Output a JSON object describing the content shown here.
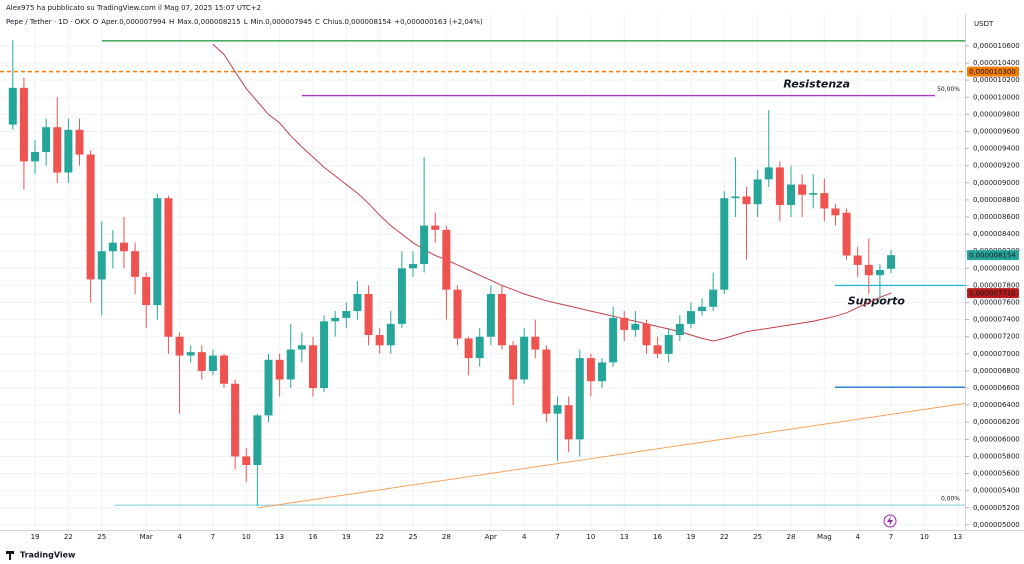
{
  "header": {
    "author": "Alex975 ha pubblicato su TradingView.com il Mag 07, 2025 15:07 UTC+2",
    "symbol": "Pepe / Tether · 1D · OKX",
    "o": "O",
    "open_label": "Aper.",
    "open": "0,000007994",
    "h": "H",
    "high_label": "Max.",
    "high": "0,000008215",
    "l": "L",
    "low_label": "Min.",
    "low": "0,000007945",
    "c": "C",
    "close_label": "Chius.",
    "close": "0,000008154",
    "change": "+0,000000163 (+2,04%)"
  },
  "footer": {
    "brand": "TradingView"
  },
  "chart_data": {
    "type": "candlestick",
    "currency": "USDT",
    "up_color": "#26a69a",
    "down_color": "#ef5350",
    "grid": true,
    "categories": [
      null,
      null,
      "19",
      null,
      null,
      "22",
      null,
      null,
      "25",
      null,
      null,
      null,
      "Mar",
      null,
      null,
      "4",
      null,
      null,
      "7",
      null,
      null,
      "10",
      null,
      null,
      "13",
      null,
      null,
      "16",
      null,
      null,
      "19",
      null,
      null,
      "22",
      null,
      null,
      "25",
      null,
      null,
      "28",
      null,
      null,
      null,
      "Apr",
      null,
      null,
      "4",
      null,
      null,
      "7",
      null,
      null,
      "10",
      null,
      null,
      "13",
      null,
      null,
      "16",
      null,
      null,
      "19",
      null,
      null,
      "22",
      null,
      null,
      "25",
      null,
      null,
      "28",
      null,
      null,
      "Mag",
      null,
      null,
      "4",
      null,
      null,
      "7",
      null,
      null,
      "10",
      null,
      null,
      "13"
    ],
    "ohlc": [
      [
        9.68e-06,
        1.067e-05,
        9.62e-06,
        1.011e-05
      ],
      [
        1.011e-05,
        1.023e-05,
        8.92e-06,
        9.25e-06
      ],
      [
        9.25e-06,
        9.5e-06,
        9.1e-06,
        9.36e-06
      ],
      [
        9.36e-06,
        9.75e-06,
        9.2e-06,
        9.65e-06
      ],
      [
        9.65e-06,
        1e-05,
        9e-06,
        9.12e-06
      ],
      [
        9.12e-06,
        9.75e-06,
        9e-06,
        9.62e-06
      ],
      [
        9.62e-06,
        9.75e-06,
        9.2e-06,
        9.33e-06
      ],
      [
        9.33e-06,
        9.38e-06,
        7.6e-06,
        7.87e-06
      ],
      [
        7.87e-06,
        8.55e-06,
        7.45e-06,
        8.2e-06
      ],
      [
        8.2e-06,
        8.45e-06,
        8e-06,
        8.3e-06
      ],
      [
        8.3e-06,
        8.6e-06,
        8e-06,
        8.2e-06
      ],
      [
        8.2e-06,
        8.3e-06,
        7.7e-06,
        7.9e-06
      ],
      [
        7.9e-06,
        7.95e-06,
        7.3e-06,
        7.57e-06
      ],
      [
        7.57e-06,
        8.87e-06,
        7.4e-06,
        8.82e-06
      ],
      [
        8.82e-06,
        8.85e-06,
        7e-06,
        7.2e-06
      ],
      [
        7.2e-06,
        7.25e-06,
        6.3e-06,
        6.98e-06
      ],
      [
        6.98e-06,
        7.1e-06,
        6.9e-06,
        7.02e-06
      ],
      [
        7.02e-06,
        7.1e-06,
        6.7e-06,
        6.8e-06
      ],
      [
        6.8e-06,
        7.05e-06,
        6.75e-06,
        6.98e-06
      ],
      [
        6.98e-06,
        7e-06,
        6.6e-06,
        6.65e-06
      ],
      [
        6.65e-06,
        6.7e-06,
        5.65e-06,
        5.8e-06
      ],
      [
        5.8e-06,
        5.9e-06,
        5.5e-06,
        5.7e-06
      ],
      [
        5.7e-06,
        6.3e-06,
        5.22e-06,
        6.28e-06
      ],
      [
        6.28e-06,
        7e-06,
        6.2e-06,
        6.93e-06
      ],
      [
        6.93e-06,
        7e-06,
        6.5e-06,
        6.7e-06
      ],
      [
        6.7e-06,
        7.35e-06,
        6.6e-06,
        7.05e-06
      ],
      [
        7.05e-06,
        7.25e-06,
        6.9e-06,
        7.1e-06
      ],
      [
        7.1e-06,
        7.2e-06,
        6.5e-06,
        6.6e-06
      ],
      [
        6.6e-06,
        7.45e-06,
        6.55e-06,
        7.38e-06
      ],
      [
        7.38e-06,
        7.5e-06,
        7.2e-06,
        7.42e-06
      ],
      [
        7.42e-06,
        7.6e-06,
        7.3e-06,
        7.5e-06
      ],
      [
        7.5e-06,
        7.85e-06,
        7.4e-06,
        7.7e-06
      ],
      [
        7.7e-06,
        7.8e-06,
        7.1e-06,
        7.22e-06
      ],
      [
        7.22e-06,
        7.3e-06,
        7e-06,
        7.1e-06
      ],
      [
        7.1e-06,
        7.5e-06,
        7e-06,
        7.35e-06
      ],
      [
        7.35e-06,
        8.2e-06,
        7.3e-06,
        8e-06
      ],
      [
        8e-06,
        8.2e-06,
        7.9e-06,
        8.05e-06
      ],
      [
        8.05e-06,
        9.3e-06,
        7.95e-06,
        8.5e-06
      ],
      [
        8.5e-06,
        8.65e-06,
        8.3e-06,
        8.45e-06
      ],
      [
        8.45e-06,
        8.5e-06,
        7.4e-06,
        7.75e-06
      ],
      [
        7.75e-06,
        7.8e-06,
        7.1e-06,
        7.18e-06
      ],
      [
        7.18e-06,
        7.2e-06,
        6.75e-06,
        6.95e-06
      ],
      [
        6.95e-06,
        7.3e-06,
        6.85e-06,
        7.2e-06
      ],
      [
        7.2e-06,
        7.8e-06,
        7.1e-06,
        7.7e-06
      ],
      [
        7.7e-06,
        7.8e-06,
        7.05e-06,
        7.1e-06
      ],
      [
        7.1e-06,
        7.15e-06,
        6.4e-06,
        6.7e-06
      ],
      [
        6.7e-06,
        7.3e-06,
        6.65e-06,
        7.2e-06
      ],
      [
        7.2e-06,
        7.4e-06,
        6.95e-06,
        7.05e-06
      ],
      [
        7.05e-06,
        7.1e-06,
        6.2e-06,
        6.3e-06
      ],
      [
        6.3e-06,
        6.5e-06,
        5.75e-06,
        6.4e-06
      ],
      [
        6.4e-06,
        6.5e-06,
        5.85e-06,
        6e-06
      ],
      [
        6e-06,
        7.05e-06,
        5.8e-06,
        6.95e-06
      ],
      [
        6.95e-06,
        7e-06,
        6.5e-06,
        6.68e-06
      ],
      [
        6.68e-06,
        6.95e-06,
        6.6e-06,
        6.9e-06
      ],
      [
        6.9e-06,
        7.55e-06,
        6.85e-06,
        7.42e-06
      ],
      [
        7.42e-06,
        7.5e-06,
        7.15e-06,
        7.28e-06
      ],
      [
        7.28e-06,
        7.5e-06,
        7.2e-06,
        7.35e-06
      ],
      [
        7.35e-06,
        7.4e-06,
        7e-06,
        7.1e-06
      ],
      [
        7.1e-06,
        7.2e-06,
        6.95e-06,
        7e-06
      ],
      [
        7e-06,
        7.3e-06,
        6.9e-06,
        7.22e-06
      ],
      [
        7.22e-06,
        7.45e-06,
        7.15e-06,
        7.35e-06
      ],
      [
        7.35e-06,
        7.6e-06,
        7.3e-06,
        7.5e-06
      ],
      [
        7.5e-06,
        7.65e-06,
        7.45e-06,
        7.55e-06
      ],
      [
        7.55e-06,
        7.95e-06,
        7.5e-06,
        7.75e-06
      ],
      [
        7.75e-06,
        8.9e-06,
        7.7e-06,
        8.82e-06
      ],
      [
        8.82e-06,
        9.3e-06,
        8.6e-06,
        8.84e-06
      ],
      [
        8.84e-06,
        8.95e-06,
        8.1e-06,
        8.75e-06
      ],
      [
        8.75e-06,
        9.15e-06,
        8.6e-06,
        9.04e-06
      ],
      [
        9.04e-06,
        9.85e-06,
        8.95e-06,
        9.18e-06
      ],
      [
        9.18e-06,
        9.25e-06,
        8.55e-06,
        8.74e-06
      ],
      [
        8.74e-06,
        9.2e-06,
        8.6e-06,
        8.98e-06
      ],
      [
        8.98e-06,
        9.1e-06,
        8.6e-06,
        8.86e-06
      ],
      [
        8.86e-06,
        9.1e-06,
        8.7e-06,
        8.88e-06
      ],
      [
        8.88e-06,
        9.05e-06,
        8.55e-06,
        8.7e-06
      ],
      [
        8.7e-06,
        8.75e-06,
        8.5e-06,
        8.62e-06
      ],
      [
        8.65e-06,
        8.7e-06,
        8.1e-06,
        8.15e-06
      ],
      [
        8.15e-06,
        8.25e-06,
        7.9e-06,
        8.04e-06
      ],
      [
        8.04e-06,
        8.35e-06,
        7.7e-06,
        7.92e-06
      ],
      [
        7.92e-06,
        8.05e-06,
        7.62e-06,
        7.98e-06
      ],
      [
        7.994e-06,
        8.215e-06,
        7.945e-06,
        8.154e-06
      ],
      null,
      null,
      null,
      null,
      null,
      null
    ],
    "ma": {
      "color": "#c2404a",
      "values": [
        null,
        null,
        null,
        null,
        null,
        null,
        null,
        null,
        null,
        null,
        null,
        null,
        null,
        null,
        null,
        null,
        null,
        null,
        1.062e-05,
        1.05e-05,
        1.03e-05,
        1.01e-05,
        9.95e-06,
        9.8e-06,
        9.7e-06,
        9.55e-06,
        9.42e-06,
        9.3e-06,
        9.18e-06,
        9.08e-06,
        8.98e-06,
        8.88e-06,
        8.76e-06,
        8.62e-06,
        8.5e-06,
        8.4e-06,
        8.3e-06,
        8.22e-06,
        8.15e-06,
        8.1e-06,
        8.04e-06,
        7.98e-06,
        7.92e-06,
        7.86e-06,
        7.8e-06,
        7.75e-06,
        7.7e-06,
        7.66e-06,
        7.62e-06,
        7.59e-06,
        7.56e-06,
        7.53e-06,
        7.5e-06,
        7.47e-06,
        7.44e-06,
        7.41e-06,
        7.38e-06,
        7.35e-06,
        7.32e-06,
        7.29e-06,
        7.26e-06,
        7.22e-06,
        7.18e-06,
        7.15e-06,
        7.18e-06,
        7.22e-06,
        7.26e-06,
        7.28e-06,
        7.3e-06,
        7.32e-06,
        7.34e-06,
        7.36e-06,
        7.38e-06,
        7.41e-06,
        7.44e-06,
        7.48e-06,
        7.54e-06,
        7.6e-06,
        7.66e-06,
        7.71e-06,
        null,
        null,
        null,
        null,
        null,
        null
      ]
    },
    "levels": [
      {
        "value": 1.066e-05,
        "color": "#2e9e48"
      },
      {
        "value": 1.03e-05,
        "color": "#f57c00",
        "dashed": true
      },
      {
        "value": 1.002e-05,
        "color": "#a83cbf",
        "text": "Resistenza",
        "pct": "50,00%"
      },
      {
        "value": 7.8e-06,
        "color": "#27bcd4",
        "text": "Supporto"
      },
      {
        "value": 6.61e-06,
        "color": "#1e78d2"
      },
      {
        "value": 5.23e-06,
        "color": "#9ad9ea",
        "pct": "0,00%"
      }
    ],
    "trendline": {
      "color": "#f5a35a",
      "values": [
        5.2e-06,
        6.42e-06
      ]
    },
    "price_labels": [
      {
        "value": 1.03e-05,
        "label": "0,000010300",
        "color": "#f57c00"
      },
      {
        "value": 8.154e-06,
        "label": "0,000008154",
        "color": "#26a69a"
      },
      {
        "value": 7.71e-06,
        "label": "0,000007710",
        "color": "#b71c1c"
      }
    ],
    "ylim": [
      4.94e-06,
      1.081e-05
    ],
    "yticks": [
      {
        "value": 5e-06,
        "label": "0,000005000"
      },
      {
        "value": 5.2e-06,
        "label": "0,000005200"
      },
      {
        "value": 5.4e-06,
        "label": "0,000005400"
      },
      {
        "value": 5.6e-06,
        "label": "0,000005600"
      },
      {
        "value": 5.8e-06,
        "label": "0,000005800"
      },
      {
        "value": 6e-06,
        "label": "0,000006000"
      },
      {
        "value": 6.2e-06,
        "label": "0,000006200"
      },
      {
        "value": 6.4e-06,
        "label": "0,000006400"
      },
      {
        "value": 6.6e-06,
        "label": "0,000006600"
      },
      {
        "value": 6.8e-06,
        "label": "0,000006800"
      },
      {
        "value": 7e-06,
        "label": "0,000007000"
      },
      {
        "value": 7.2e-06,
        "label": "0,000007200"
      },
      {
        "value": 7.4e-06,
        "label": "0,000007400"
      },
      {
        "value": 7.6e-06,
        "label": "0,000007600"
      },
      {
        "value": 7.8e-06,
        "label": "0,000007800"
      },
      {
        "value": 8e-06,
        "label": "0,000008000"
      },
      {
        "value": 8.2e-06,
        "label": "0,000008200"
      },
      {
        "value": 8.4e-06,
        "label": "0,000008400"
      },
      {
        "value": 8.6e-06,
        "label": "0,000008600"
      },
      {
        "value": 8.8e-06,
        "label": "0,000008800"
      },
      {
        "value": 9e-06,
        "label": "0,000009000"
      },
      {
        "value": 9.2e-06,
        "label": "0,000009200"
      },
      {
        "value": 9.4e-06,
        "label": "0,000009400"
      },
      {
        "value": 9.6e-06,
        "label": "0,000009600"
      },
      {
        "value": 9.8e-06,
        "label": "0,000009800"
      },
      {
        "value": 1e-05,
        "label": "0,000010000"
      },
      {
        "value": 1.02e-05,
        "label": "0,000010200"
      },
      {
        "value": 1.04e-05,
        "label": "0,000010400"
      },
      {
        "value": 1.06e-05,
        "label": "0,000010600"
      }
    ]
  }
}
